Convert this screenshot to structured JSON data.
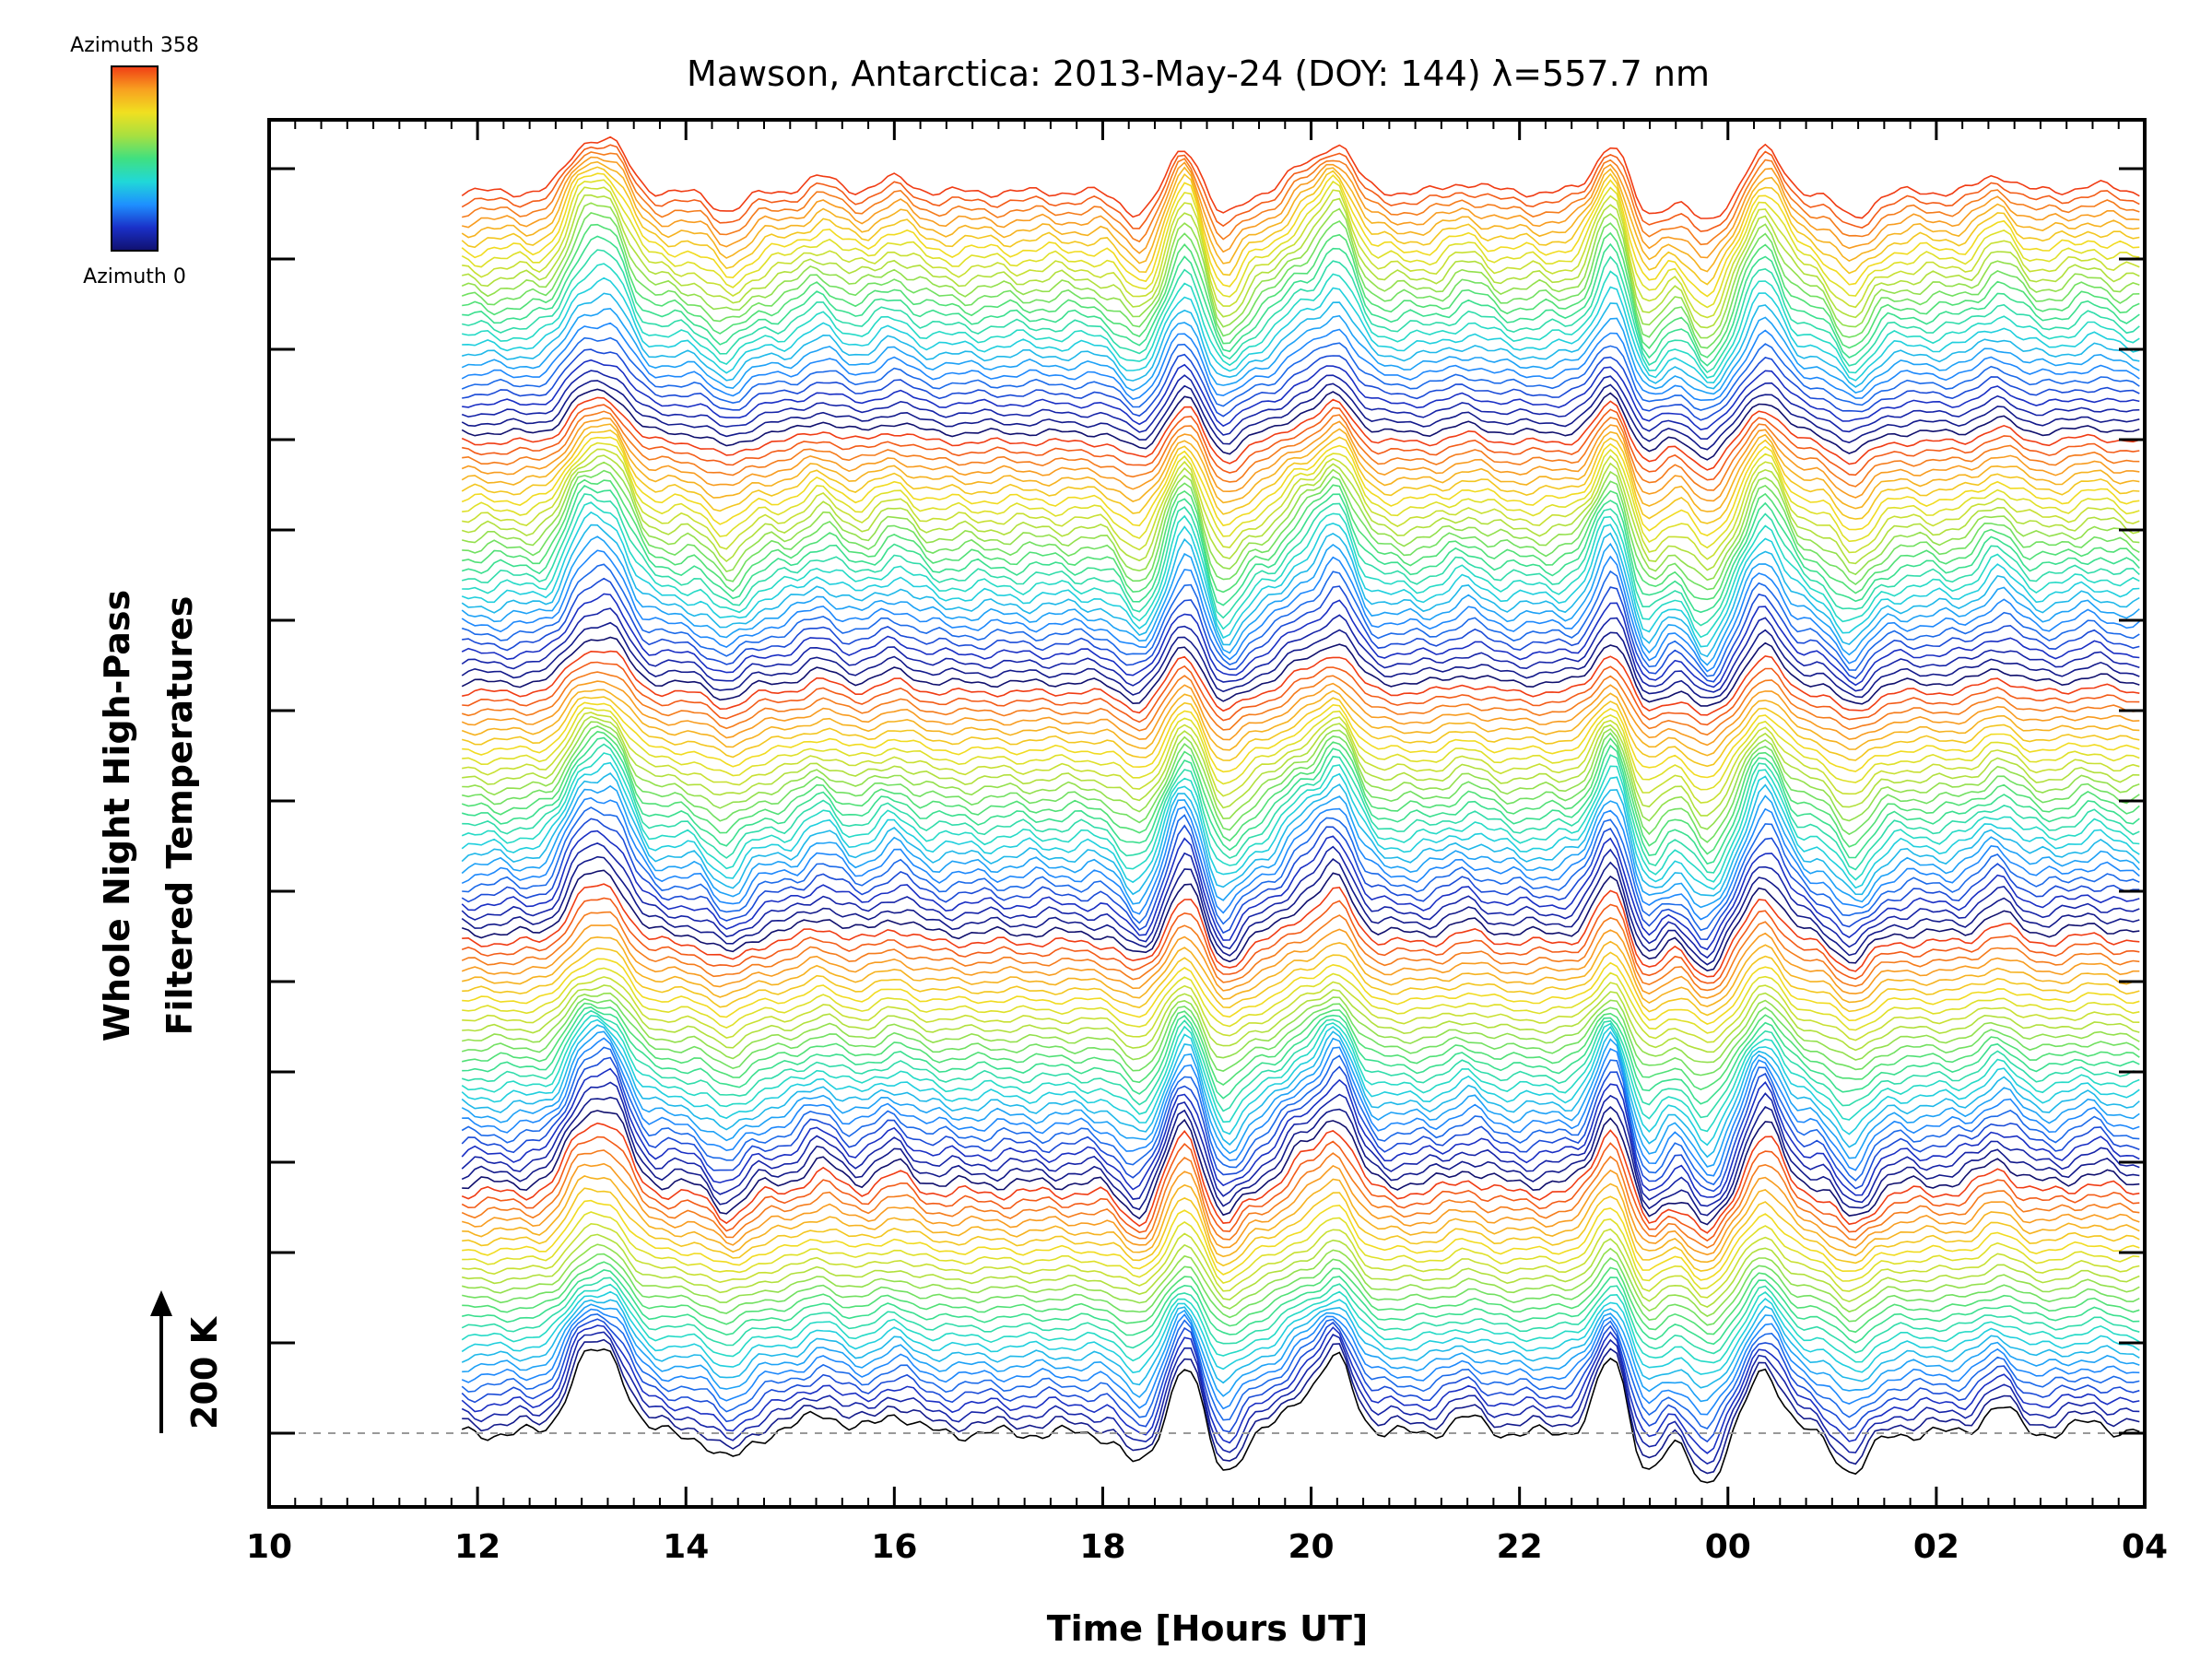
{
  "chart_data": {
    "type": "line",
    "title": "Mawson, Antarctica: 2013-May-24 (DOY: 144) λ=557.7 nm",
    "xlabel": "Time [Hours UT]",
    "ylabel_line1": "Whole Night High-Pass",
    "ylabel_line2": "Filtered Temperatures",
    "scale_bar_label": "200 K",
    "x_tick_labels": [
      "10",
      "12",
      "14",
      "16",
      "18",
      "20",
      "22",
      "00",
      "02",
      "04"
    ],
    "x_tick_hours": [
      10,
      12,
      14,
      16,
      18,
      20,
      22,
      24,
      26,
      28
    ],
    "xlim": [
      10,
      28
    ],
    "data_start_hour": 11.85,
    "data_end_hour": 27.95,
    "grid": false,
    "baseline_dashed": true,
    "series_count": 130,
    "series_offset_k": 32,
    "colorbar": {
      "label_top": "Azimuth 358",
      "label_bottom": "Azimuth 0",
      "colormap": "rainbow",
      "min": 0,
      "max": 358,
      "colors": [
        "#10106e",
        "#1a30c8",
        "#1e90ff",
        "#20d8d8",
        "#40e080",
        "#a8e040",
        "#f0e020",
        "#f8a020",
        "#f03c14"
      ]
    },
    "profile_features_hours": [
      {
        "hour": 13.0,
        "k": 170
      },
      {
        "hour": 13.3,
        "k": 180
      },
      {
        "hour": 14.4,
        "k": -75
      },
      {
        "hour": 15.3,
        "k": 60
      },
      {
        "hour": 16.0,
        "k": 55
      },
      {
        "hour": 18.35,
        "k": -90
      },
      {
        "hour": 18.8,
        "k": 190
      },
      {
        "hour": 19.15,
        "k": -110
      },
      {
        "hour": 19.9,
        "k": 90
      },
      {
        "hour": 20.25,
        "k": 195
      },
      {
        "hour": 21.5,
        "k": 40
      },
      {
        "hour": 22.9,
        "k": 215
      },
      {
        "hour": 23.2,
        "k": -120
      },
      {
        "hour": 23.8,
        "k": -130
      },
      {
        "hour": 24.35,
        "k": 175
      },
      {
        "hour": 25.2,
        "k": -105
      },
      {
        "hour": 26.6,
        "k": 70
      },
      {
        "hour": 27.5,
        "k": 30
      }
    ]
  }
}
